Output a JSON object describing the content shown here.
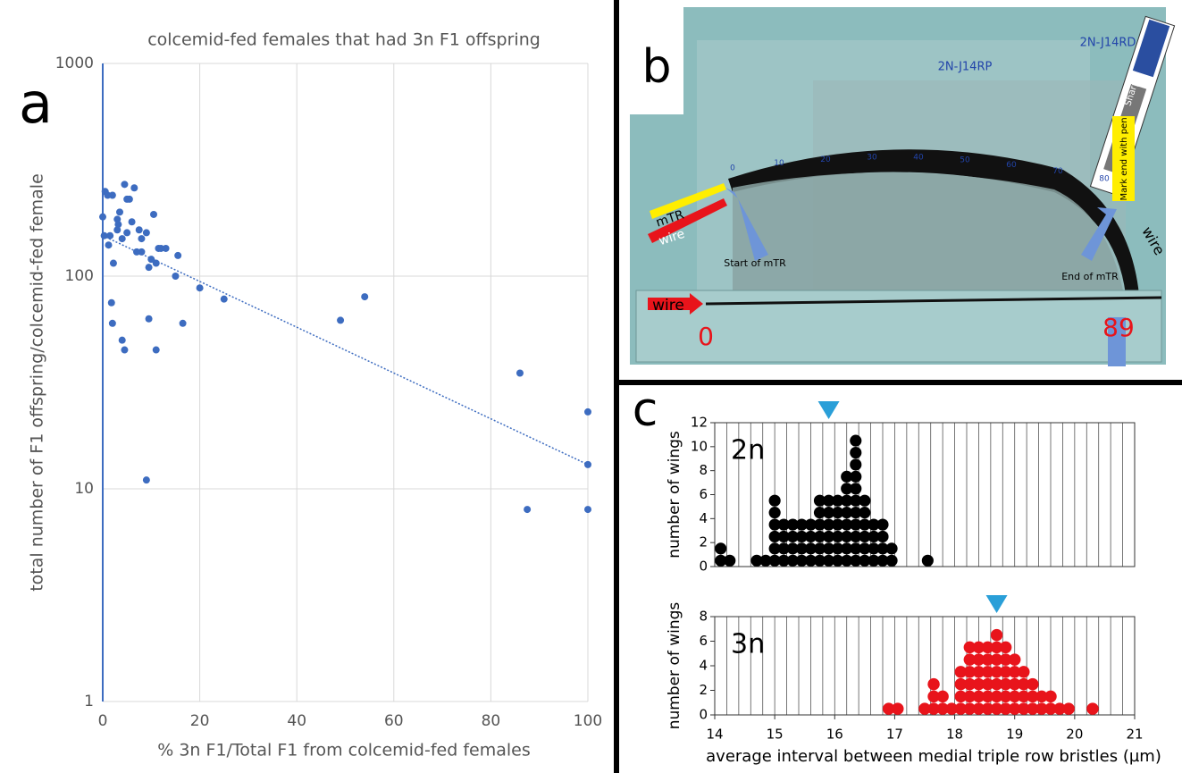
{
  "chart_data": [
    {
      "type": "scatter",
      "title": "colcemid-fed females that had 3n F1 offspring",
      "xlabel": "% 3n F1/Total F1 from colcemid-fed females",
      "ylabel": "total number of F1 offspring/colcemid-fed female",
      "log_y": true,
      "color": "#3d6cc0",
      "grid": true,
      "x": [
        0.5,
        0,
        1,
        0.3,
        1.5,
        2,
        1.2,
        1.8,
        2.2,
        2,
        3,
        3,
        3.5,
        3.2,
        4,
        4.5,
        5,
        4,
        4.5,
        5,
        5.5,
        6,
        6.5,
        7,
        7.5,
        8,
        8,
        9,
        9.5,
        9.5,
        10,
        10.5,
        11,
        11,
        11.5,
        12,
        13,
        15,
        15.5,
        16.5,
        20,
        25,
        49,
        54,
        9,
        86,
        87.5,
        100,
        100,
        100
      ],
      "values": [
        250,
        190,
        240,
        155,
        155,
        240,
        140,
        75,
        115,
        60,
        165,
        185,
        200,
        175,
        150,
        270,
        230,
        50,
        45,
        160,
        230,
        180,
        260,
        130,
        165,
        130,
        150,
        160,
        110,
        63,
        120,
        195,
        115,
        45,
        135,
        135,
        135,
        100,
        125,
        60,
        88,
        78,
        62,
        80,
        11,
        35,
        8,
        23,
        13,
        8
      ],
      "trend": {
        "x": [
          0,
          100
        ],
        "values": [
          155,
          13
        ]
      },
      "xlim": [
        0,
        100
      ],
      "xticks": [
        0,
        20,
        40,
        60,
        80,
        100
      ],
      "ylim": [
        1,
        1000
      ],
      "yticks": [
        1,
        10,
        100,
        1000
      ]
    },
    {
      "type": "dot_histogram",
      "name": "2n",
      "color": "#000000",
      "marker_color": "#2a9fd8",
      "ylabel": "number of wings",
      "grid_step": 0.2,
      "x": [
        14.1,
        14.25,
        14.7,
        14.85,
        15.0,
        15.15,
        15.3,
        15.45,
        15.6,
        15.75,
        15.9,
        16.05,
        16.2,
        16.35,
        16.5,
        16.65,
        16.8,
        16.95,
        17.55
      ],
      "values": [
        2,
        1,
        1,
        1,
        6,
        4,
        4,
        4,
        4,
        6,
        6,
        6,
        8,
        11,
        6,
        4,
        4,
        2,
        1
      ],
      "mean_marker": 15.9,
      "xlim": [
        14,
        21
      ],
      "ylim": [
        0,
        12
      ],
      "yticks": [
        0,
        2,
        4,
        6,
        8,
        10,
        12
      ]
    },
    {
      "type": "dot_histogram",
      "name": "3n",
      "color": "#e8141b",
      "marker_color": "#2a9fd8",
      "ylabel": "number of wings",
      "xlabel": "average interval between medial triple row bristles (µm)",
      "grid_step": 0.2,
      "x": [
        16.9,
        17.05,
        17.5,
        17.65,
        17.8,
        17.95,
        18.1,
        18.25,
        18.4,
        18.55,
        18.7,
        18.85,
        19.0,
        19.15,
        19.3,
        19.45,
        19.6,
        19.75,
        19.9,
        20.3
      ],
      "values": [
        1,
        1,
        1,
        3,
        2,
        1,
        4,
        6,
        6,
        6,
        7,
        6,
        5,
        4,
        3,
        2,
        2,
        1,
        1,
        1
      ],
      "mean_marker": 18.7,
      "xlim": [
        14,
        21
      ],
      "xticks": [
        14,
        15,
        16,
        17,
        18,
        19,
        20,
        21
      ],
      "ylim": [
        0,
        8
      ],
      "yticks": [
        0,
        2,
        4,
        6,
        8
      ]
    }
  ],
  "panel_labels": [
    "a",
    "b",
    "c"
  ],
  "photo": {
    "texts": [
      "2N-J14RD",
      "2N-J14RP",
      "mTR",
      "wire",
      "Start of mTR",
      "End of mTR",
      "wire",
      "Mark end with pen",
      "wire",
      "0",
      "89",
      "Sharpie"
    ],
    "scale": [
      0,
      10,
      20,
      30,
      40,
      50,
      60,
      70,
      80
    ]
  }
}
